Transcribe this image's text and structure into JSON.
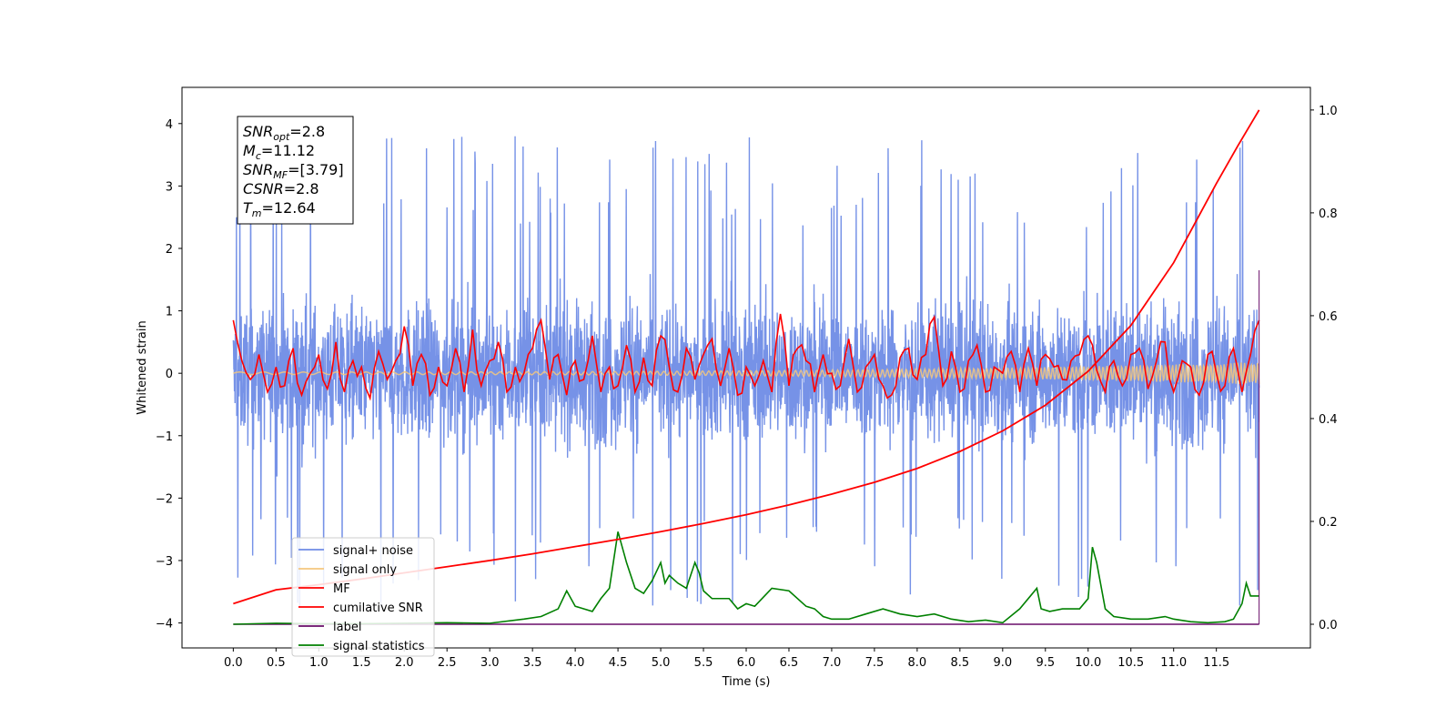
{
  "chart_data": {
    "type": "line",
    "xlabel": "Time (s)",
    "ylabel": "Whitened strain",
    "xlim": [
      -0.6,
      12.6
    ],
    "ylim": [
      -4.4,
      4.58
    ],
    "y2lim": [
      -0.046,
      1.044
    ],
    "x_ticks": [
      0.0,
      0.5,
      1.0,
      1.5,
      2.0,
      2.5,
      3.0,
      3.5,
      4.0,
      4.5,
      5.0,
      5.5,
      6.0,
      6.5,
      7.0,
      7.5,
      8.0,
      8.5,
      9.0,
      9.5,
      10.0,
      10.5,
      11.0,
      11.5
    ],
    "x_tick_labels": [
      "0.0",
      "0.5",
      "1.0",
      "1.5",
      "2.0",
      "2.5",
      "3.0",
      "3.5",
      "4.0",
      "4.5",
      "5.0",
      "5.5",
      "6.0",
      "6.5",
      "7.0",
      "7.5",
      "8.0",
      "8.5",
      "9.0",
      "9.5",
      "10.0",
      "10.5",
      "11.0",
      "11.5"
    ],
    "y_ticks": [
      4,
      3,
      2,
      1,
      0,
      -1,
      -2,
      -3,
      -4
    ],
    "y_tick_labels": [
      "4",
      "3",
      "2",
      "1",
      "0",
      "−1",
      "−2",
      "−3",
      "−4"
    ],
    "y2_ticks": [
      1.0,
      0.8,
      0.6,
      0.4,
      0.2,
      0.0
    ],
    "y2_tick_labels": [
      "1.0",
      "0.8",
      "0.6",
      "0.4",
      "0.2",
      "0.0"
    ],
    "grid": false,
    "legend_position": "lower-left",
    "series": [
      {
        "name": "signal+ noise",
        "color": "#6f8ce6",
        "axis": "left",
        "x_range": [
          0.0,
          12.0
        ],
        "noise_band": [
          -1.7,
          1.7
        ],
        "spike_max": [
          -3.75,
          4.2
        ]
      },
      {
        "name": "signal only",
        "color": "#f5c77e",
        "axis": "left",
        "x_range": [
          0.0,
          12.0
        ],
        "amplitude_start": 0.02,
        "amplitude_end": 0.18
      },
      {
        "name": "MF",
        "color": "#ff0000",
        "axis": "left",
        "x": [
          0.0,
          0.1,
          0.2,
          0.3,
          0.4,
          0.5,
          0.6,
          0.7,
          0.8,
          0.9,
          1.0,
          1.1,
          1.2,
          1.3,
          1.4,
          1.5,
          1.6,
          1.7,
          1.8,
          1.9,
          2.0,
          2.1,
          2.2,
          2.3,
          2.4,
          2.5,
          2.6,
          2.7,
          2.8,
          2.9,
          3.0,
          3.1,
          3.2,
          3.3,
          3.4,
          3.5,
          3.6,
          3.7,
          3.8,
          3.9,
          4.0,
          4.1,
          4.2,
          4.3,
          4.4,
          4.5,
          4.6,
          4.7,
          4.8,
          4.9,
          5.0,
          5.1,
          5.2,
          5.3,
          5.4,
          5.5,
          5.6,
          5.7,
          5.8,
          5.9,
          6.0,
          6.1,
          6.2,
          6.3,
          6.4,
          6.5,
          6.6,
          6.7,
          6.8,
          6.9,
          7.0,
          7.1,
          7.2,
          7.3,
          7.4,
          7.5,
          7.6,
          7.7,
          7.8,
          7.9,
          8.0,
          8.1,
          8.2,
          8.3,
          8.4,
          8.5,
          8.6,
          8.7,
          8.8,
          8.9,
          9.0,
          9.1,
          9.2,
          9.3,
          9.4,
          9.5,
          9.6,
          9.7,
          9.8,
          9.9,
          10.0,
          10.1,
          10.2,
          10.3,
          10.4,
          10.5,
          10.6,
          10.7,
          10.8,
          10.9,
          11.0,
          11.1,
          11.2,
          11.3,
          11.4,
          11.5,
          11.6,
          11.7,
          11.8,
          11.9,
          12.0
        ],
        "y": [
          0.85,
          0.2,
          -0.1,
          0.3,
          -0.3,
          0.1,
          -0.2,
          0.4,
          -0.35,
          0.0,
          0.3,
          -0.25,
          0.5,
          -0.3,
          0.2,
          0.1,
          -0.4,
          0.35,
          -0.1,
          0.2,
          0.75,
          -0.2,
          0.3,
          -0.35,
          0.1,
          -0.2,
          0.4,
          -0.3,
          0.7,
          -0.2,
          0.2,
          0.5,
          -0.3,
          0.1,
          0.0,
          0.4,
          0.85,
          -0.1,
          0.3,
          -0.35,
          0.2,
          -0.1,
          0.6,
          -0.3,
          0.1,
          -0.2,
          0.45,
          -0.3,
          0.25,
          -0.2,
          0.6,
          0.1,
          -0.3,
          0.4,
          -0.1,
          0.3,
          0.55,
          -0.2,
          0.4,
          -0.35,
          0.1,
          -0.2,
          0.2,
          -0.3,
          0.95,
          -0.2,
          0.4,
          0.2,
          -0.3,
          0.3,
          0.0,
          -0.2,
          0.55,
          -0.3,
          0.1,
          0.3,
          -0.2,
          -0.35,
          0.25,
          0.4,
          -0.1,
          0.3,
          0.9,
          -0.2,
          0.35,
          -0.3,
          0.2,
          0.45,
          -0.3,
          0.1,
          0.0,
          0.35,
          -0.3,
          0.4,
          -0.2,
          0.3,
          0.1,
          -0.1,
          0.2,
          0.3,
          0.6,
          0.05,
          -0.3,
          0.2,
          -0.2,
          0.3,
          0.4,
          -0.25,
          0.2,
          0.5,
          -0.3,
          0.2,
          0.1,
          -0.35,
          0.3,
          0.0,
          -0.2,
          0.4,
          -0.3,
          0.3,
          0.85
        ]
      },
      {
        "name": "cumilative SNR",
        "color": "#ff0000",
        "axis": "right",
        "x": [
          0.0,
          0.5,
          1.0,
          1.5,
          2.0,
          2.5,
          3.0,
          3.5,
          4.0,
          4.5,
          5.0,
          5.5,
          6.0,
          6.5,
          7.0,
          7.5,
          8.0,
          8.5,
          9.0,
          9.5,
          10.0,
          10.5,
          11.0,
          11.5,
          11.75,
          12.0
        ],
        "y": [
          0.04,
          0.067,
          0.077,
          0.088,
          0.1,
          0.112,
          0.124,
          0.137,
          0.151,
          0.165,
          0.18,
          0.196,
          0.213,
          0.232,
          0.253,
          0.276,
          0.303,
          0.336,
          0.376,
          0.426,
          0.492,
          0.581,
          0.703,
          0.857,
          0.93,
          1.0
        ]
      },
      {
        "name": "label",
        "color": "#6a0d6a",
        "axis": "right",
        "x": [
          0.0,
          12.0
        ],
        "y": [
          0.0,
          0.0
        ]
      },
      {
        "name": "signal statistics",
        "color": "#008000",
        "axis": "right",
        "x": [
          0.0,
          0.5,
          1.0,
          1.5,
          2.0,
          2.5,
          3.0,
          3.4,
          3.6,
          3.8,
          3.9,
          4.0,
          4.2,
          4.3,
          4.4,
          4.5,
          4.6,
          4.7,
          4.8,
          4.9,
          5.0,
          5.05,
          5.1,
          5.2,
          5.3,
          5.4,
          5.45,
          5.5,
          5.6,
          5.8,
          5.9,
          6.0,
          6.1,
          6.3,
          6.5,
          6.7,
          6.8,
          6.9,
          7.0,
          7.2,
          7.4,
          7.6,
          7.8,
          8.0,
          8.2,
          8.4,
          8.6,
          8.8,
          9.0,
          9.2,
          9.4,
          9.45,
          9.55,
          9.7,
          9.8,
          9.9,
          10.0,
          10.05,
          10.1,
          10.2,
          10.3,
          10.5,
          10.7,
          10.9,
          11.0,
          11.2,
          11.4,
          11.6,
          11.7,
          11.8,
          11.85,
          11.9,
          12.0
        ],
        "y": [
          0.0,
          0.002,
          0.001,
          0.001,
          0.002,
          0.003,
          0.002,
          0.01,
          0.015,
          0.03,
          0.065,
          0.035,
          0.025,
          0.05,
          0.07,
          0.18,
          0.12,
          0.07,
          0.06,
          0.085,
          0.12,
          0.08,
          0.095,
          0.08,
          0.07,
          0.12,
          0.1,
          0.065,
          0.05,
          0.05,
          0.03,
          0.04,
          0.035,
          0.07,
          0.065,
          0.035,
          0.03,
          0.015,
          0.01,
          0.01,
          0.02,
          0.03,
          0.02,
          0.015,
          0.02,
          0.01,
          0.005,
          0.008,
          0.003,
          0.03,
          0.07,
          0.03,
          0.025,
          0.03,
          0.03,
          0.03,
          0.05,
          0.15,
          0.12,
          0.03,
          0.015,
          0.01,
          0.01,
          0.015,
          0.01,
          0.005,
          0.003,
          0.005,
          0.01,
          0.04,
          0.08,
          0.055,
          0.055
        ]
      }
    ]
  },
  "info_box": {
    "lines": [
      {
        "main": "SNR",
        "sub": "opt",
        "value": "=2.8"
      },
      {
        "main": "M",
        "sub": "c",
        "value": "=11.12"
      },
      {
        "main": "SNR",
        "sub": "MF",
        "value": "=[3.79]"
      },
      {
        "main": "CSNR",
        "sub": "",
        "value": "=2.8"
      },
      {
        "main": "T",
        "sub": "m",
        "value": "=12.64"
      }
    ]
  }
}
